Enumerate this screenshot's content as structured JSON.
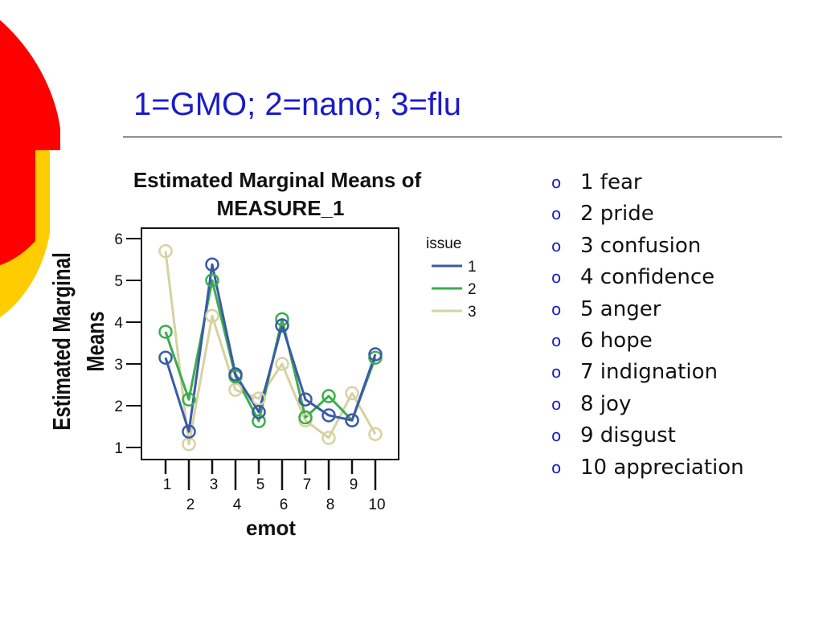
{
  "slide": {
    "title": "1=GMO; 2=nano; 3=flu",
    "bullets": [
      "1 fear",
      "2 pride",
      "3 confusion",
      "4 confidence",
      "5 anger",
      "6 hope",
      "7 indignation",
      "8 joy",
      "9 disgust",
      "10 appreciation"
    ],
    "bullet_symbol": "o"
  },
  "colors": {
    "title": "#1a1ac8",
    "decor_red": "#ff0000",
    "decor_yellow": "#ffcc00"
  },
  "chart_data": {
    "type": "line",
    "title_lines": [
      "Estimated Marginal Means of",
      "MEASURE_1"
    ],
    "xlabel": "emot",
    "ylabel_lines": [
      "Estimated Marginal",
      "Means"
    ],
    "categories": [
      "1",
      "2",
      "3",
      "4",
      "5",
      "6",
      "7",
      "8",
      "9",
      "10"
    ],
    "yticks": [
      "1",
      "2",
      "3",
      "4",
      "5",
      "6"
    ],
    "ylim": [
      0.8,
      6.3
    ],
    "legend_title": "issue",
    "legend_position": "right",
    "series": [
      {
        "name": "1",
        "color": "#3a5aa8",
        "values": [
          3.15,
          1.38,
          5.38,
          2.75,
          1.85,
          3.92,
          2.15,
          1.77,
          1.65,
          3.23
        ]
      },
      {
        "name": "2",
        "color": "#3aae4a",
        "values": [
          3.77,
          2.15,
          5.0,
          2.7,
          1.63,
          4.07,
          1.72,
          2.23,
          1.65,
          3.15
        ]
      },
      {
        "name": "3",
        "color": "#d6d2a2",
        "values": [
          5.7,
          1.08,
          4.15,
          2.38,
          2.17,
          3.0,
          1.65,
          1.23,
          2.3,
          1.32
        ]
      }
    ]
  }
}
